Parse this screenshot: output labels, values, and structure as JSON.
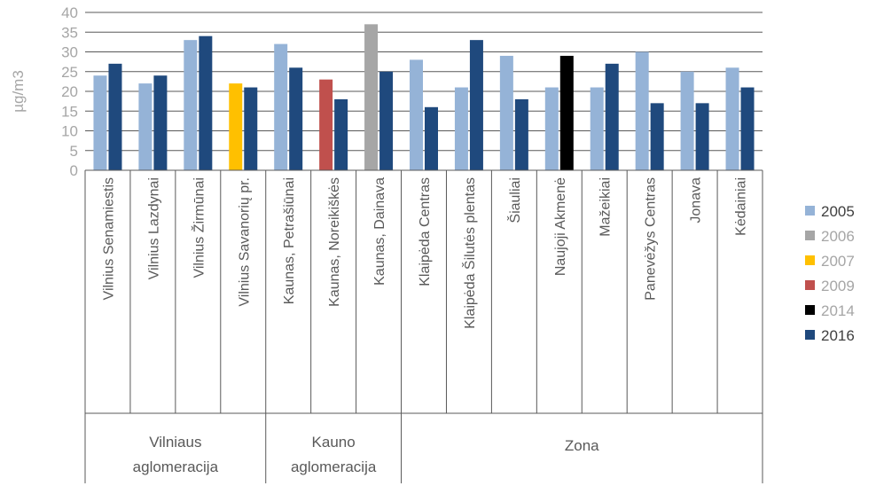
{
  "chart_data": {
    "type": "bar",
    "ylabel": "µg/m3",
    "ylim": [
      0,
      40
    ],
    "yticks": [
      0,
      5,
      10,
      15,
      20,
      25,
      30,
      35,
      40
    ],
    "grid": true,
    "legend_position": "right",
    "categories": [
      "Vilnius Senamiestis",
      "Vilnius Lazdynai",
      "Vilnius Žirmūnai",
      "Vilnius Savanorių pr.",
      "Kaunas, Petrašiūnai",
      "Kaunas, Noreikiškės",
      "Kaunas, Dainava",
      "Klaipėda Centras",
      "Klaipėda Šilutės plentas",
      "Šiauliai",
      "Naujoji Akmenė",
      "Mažeikiai",
      "Panevėžys Centras",
      "Jonava",
      "Kėdainiai"
    ],
    "groups": [
      {
        "label_lines": [
          "Vilniaus",
          "aglomeracija"
        ],
        "start": 0,
        "end": 3
      },
      {
        "label_lines": [
          "Kauno",
          "aglomeracija"
        ],
        "start": 4,
        "end": 6
      },
      {
        "label_lines": [
          "Zona"
        ],
        "start": 7,
        "end": 14
      }
    ],
    "series": [
      {
        "name": "2005",
        "color": "#95b3d7",
        "label_color": "#404040"
      },
      {
        "name": "2006",
        "color": "#a6a6a6",
        "label_color": "#a6a6a6"
      },
      {
        "name": "2007",
        "color": "#ffc000",
        "label_color": "#a6a6a6"
      },
      {
        "name": "2009",
        "color": "#c0504d",
        "label_color": "#a6a6a6"
      },
      {
        "name": "2014",
        "color": "#000000",
        "label_color": "#a6a6a6"
      },
      {
        "name": "2016",
        "color": "#1f497d",
        "label_color": "#404040"
      }
    ],
    "bars": [
      [
        {
          "series": "2005",
          "value": 24
        },
        {
          "series": "2016",
          "value": 27
        }
      ],
      [
        {
          "series": "2005",
          "value": 22
        },
        {
          "series": "2016",
          "value": 24
        }
      ],
      [
        {
          "series": "2005",
          "value": 33
        },
        {
          "series": "2016",
          "value": 34
        }
      ],
      [
        {
          "series": "2007",
          "value": 22
        },
        {
          "series": "2016",
          "value": 21
        }
      ],
      [
        {
          "series": "2005",
          "value": 32
        },
        {
          "series": "2016",
          "value": 26
        }
      ],
      [
        {
          "series": "2009",
          "value": 23
        },
        {
          "series": "2016",
          "value": 18
        }
      ],
      [
        {
          "series": "2006",
          "value": 37
        },
        {
          "series": "2016",
          "value": 25
        }
      ],
      [
        {
          "series": "2005",
          "value": 28
        },
        {
          "series": "2016",
          "value": 16
        }
      ],
      [
        {
          "series": "2005",
          "value": 21
        },
        {
          "series": "2016",
          "value": 33
        }
      ],
      [
        {
          "series": "2005",
          "value": 29
        },
        {
          "series": "2016",
          "value": 18
        }
      ],
      [
        {
          "series": "2005",
          "value": 21
        },
        {
          "series": "2014",
          "value": 29
        }
      ],
      [
        {
          "series": "2005",
          "value": 21
        },
        {
          "series": "2016",
          "value": 27
        }
      ],
      [
        {
          "series": "2005",
          "value": 30
        },
        {
          "series": "2016",
          "value": 17
        }
      ],
      [
        {
          "series": "2005",
          "value": 25
        },
        {
          "series": "2016",
          "value": 17
        }
      ],
      [
        {
          "series": "2005",
          "value": 26
        },
        {
          "series": "2016",
          "value": 21
        }
      ]
    ]
  }
}
